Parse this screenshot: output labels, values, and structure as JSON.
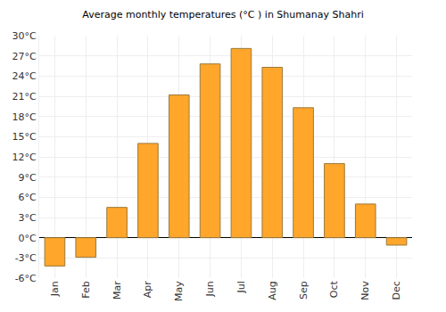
{
  "chart_data": {
    "type": "bar",
    "title": "Average monthly temperatures (°C ) in Shumanay Shahri",
    "categories": [
      "Jan",
      "Feb",
      "Mar",
      "Apr",
      "May",
      "Jun",
      "Jul",
      "Aug",
      "Sep",
      "Oct",
      "Nov",
      "Dec"
    ],
    "values": [
      -4.2,
      -2.9,
      4.5,
      14.0,
      21.2,
      25.8,
      28.1,
      25.3,
      19.3,
      11.0,
      5.0,
      -1.1
    ],
    "color": "#ffa62b",
    "ylim": [
      -6,
      30
    ],
    "yticks": [
      {
        "value": -6,
        "label": "-6°C"
      },
      {
        "value": -3,
        "label": "-3°C"
      },
      {
        "value": 0,
        "label": "0°C"
      },
      {
        "value": 3,
        "label": "3°C"
      },
      {
        "value": 6,
        "label": "6°C"
      },
      {
        "value": 9,
        "label": "9°C"
      },
      {
        "value": 12,
        "label": "12°C"
      },
      {
        "value": 15,
        "label": "15°C"
      },
      {
        "value": 18,
        "label": "18°C"
      },
      {
        "value": 21,
        "label": "21°C"
      },
      {
        "value": 24,
        "label": "24°C"
      },
      {
        "value": 27,
        "label": "27°C"
      },
      {
        "value": 30,
        "label": "30°C"
      }
    ],
    "grid": true
  }
}
